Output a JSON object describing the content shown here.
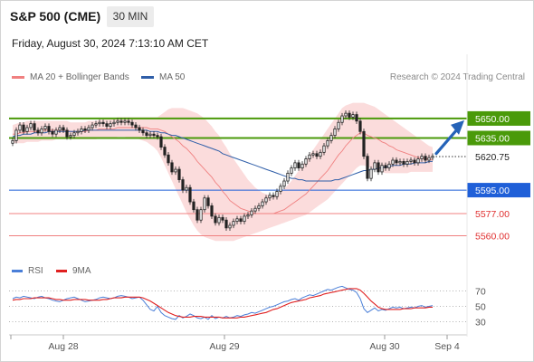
{
  "header": {
    "title": "S&P 500 (CME)",
    "timeframe": "30 MIN",
    "timestamp": "Friday, August 30, 2024 7:13:10 AM CET",
    "credit": "Research © 2024 Trading Central"
  },
  "legend": {
    "ma20": {
      "label": "MA 20 + Bollinger Bands",
      "color": "#f08080"
    },
    "ma50": {
      "label": "MA 50",
      "color": "#2f5ea8"
    },
    "rsi": {
      "label": "RSI",
      "color": "#4a7fd8"
    },
    "rsi_ma": {
      "label": "9MA",
      "color": "#e02020"
    }
  },
  "colors": {
    "resistance": "#4a9a0a",
    "pivot": "#1f5fd8",
    "support": "#f08080",
    "bullish_arrow": "#2563b8",
    "candle": "#222222",
    "band_fill": "#fbdcdc"
  },
  "chart_data": [
    {
      "type": "candlestick",
      "instrument": "S&P 500 (CME)",
      "interval": "30 MIN",
      "x_ticks": [
        "Aug 28",
        "Aug 29",
        "Aug 30",
        "Sep 4"
      ],
      "ylim": [
        5552,
        5668
      ],
      "current_price": 5620.75,
      "levels": [
        {
          "value": 5650.0,
          "label": "5650.00",
          "kind": "resistance"
        },
        {
          "value": 5635.0,
          "label": "5635.00",
          "kind": "resistance"
        },
        {
          "value": 5620.75,
          "label": "5620.75",
          "kind": "last"
        },
        {
          "value": 5595.0,
          "label": "5595.00",
          "kind": "pivot"
        },
        {
          "value": 5577.0,
          "label": "5577.00",
          "kind": "support"
        },
        {
          "value": 5560.0,
          "label": "5560.00",
          "kind": "support"
        }
      ],
      "closes": [
        5633,
        5641,
        5645,
        5640,
        5643,
        5646,
        5641,
        5639,
        5642,
        5644,
        5640,
        5638,
        5641,
        5643,
        5641,
        5636,
        5637,
        5639,
        5640,
        5642,
        5641,
        5643,
        5645,
        5646,
        5647,
        5646,
        5644,
        5646,
        5647,
        5648,
        5647,
        5648,
        5647,
        5645,
        5643,
        5641,
        5639,
        5637,
        5638,
        5637,
        5636,
        5628,
        5622,
        5616,
        5609,
        5611,
        5603,
        5595,
        5597,
        5586,
        5580,
        5572,
        5580,
        5589,
        5583,
        5575,
        5570,
        5574,
        5572,
        5566,
        5568,
        5571,
        5573,
        5571,
        5575,
        5576,
        5579,
        5581,
        5583,
        5586,
        5589,
        5591,
        5590,
        5594,
        5598,
        5602,
        5608,
        5612,
        5616,
        5612,
        5615,
        5619,
        5622,
        5623,
        5621,
        5624,
        5629,
        5633,
        5637,
        5642,
        5647,
        5652,
        5654,
        5651,
        5653,
        5648,
        5640,
        5621,
        5604,
        5611,
        5616,
        5609,
        5614,
        5612,
        5615,
        5618,
        5616,
        5617,
        5615,
        5617,
        5618,
        5616,
        5619,
        5621,
        5618,
        5620,
        5621
      ],
      "ma20": [
        5638,
        5638,
        5639,
        5639,
        5640,
        5640,
        5640,
        5640,
        5641,
        5641,
        5641,
        5641,
        5641,
        5641,
        5641,
        5641,
        5640,
        5640,
        5640,
        5640,
        5640,
        5641,
        5641,
        5641,
        5642,
        5642,
        5642,
        5642,
        5642,
        5643,
        5643,
        5643,
        5643,
        5643,
        5643,
        5643,
        5643,
        5643,
        5642,
        5642,
        5642,
        5641,
        5640,
        5638,
        5636,
        5634,
        5632,
        5629,
        5627,
        5624,
        5621,
        5617,
        5614,
        5611,
        5608,
        5605,
        5601,
        5598,
        5594,
        5591,
        5587,
        5585,
        5583,
        5581,
        5580,
        5579,
        5578,
        5577,
        5577,
        5577,
        5577,
        5577,
        5577,
        5578,
        5579,
        5580,
        5582,
        5584,
        5586,
        5588,
        5590,
        5592,
        5595,
        5598,
        5601,
        5604,
        5607,
        5610,
        5614,
        5618,
        5622,
        5625,
        5629,
        5632,
        5635,
        5637,
        5639,
        5639,
        5637,
        5636,
        5635,
        5634,
        5632,
        5631,
        5629,
        5628,
        5626,
        5625,
        5624,
        5623,
        5622,
        5621,
        5620,
        5620,
        5619,
        5619,
        5618
      ],
      "bb_upper": [
        5645,
        5646,
        5647,
        5647,
        5648,
        5648,
        5648,
        5648,
        5648,
        5648,
        5648,
        5648,
        5648,
        5648,
        5648,
        5648,
        5647,
        5647,
        5647,
        5647,
        5647,
        5648,
        5648,
        5648,
        5649,
        5649,
        5650,
        5650,
        5650,
        5651,
        5651,
        5651,
        5651,
        5651,
        5651,
        5651,
        5651,
        5651,
        5651,
        5651,
        5651,
        5653,
        5655,
        5657,
        5658,
        5658,
        5658,
        5658,
        5657,
        5656,
        5655,
        5654,
        5652,
        5650,
        5647,
        5644,
        5640,
        5637,
        5632,
        5628,
        5623,
        5619,
        5615,
        5611,
        5607,
        5603,
        5600,
        5597,
        5595,
        5593,
        5592,
        5591,
        5591,
        5592,
        5594,
        5596,
        5599,
        5602,
        5606,
        5610,
        5614,
        5618,
        5622,
        5626,
        5630,
        5634,
        5638,
        5642,
        5646,
        5650,
        5654,
        5658,
        5660,
        5661,
        5662,
        5662,
        5662,
        5662,
        5661,
        5660,
        5659,
        5657,
        5655,
        5653,
        5651,
        5649,
        5647,
        5645,
        5643,
        5641,
        5639,
        5637,
        5635,
        5633,
        5631,
        5629,
        5628
      ],
      "bb_lower": [
        5631,
        5631,
        5631,
        5631,
        5632,
        5632,
        5632,
        5632,
        5633,
        5633,
        5633,
        5633,
        5634,
        5634,
        5634,
        5634,
        5634,
        5634,
        5634,
        5634,
        5634,
        5634,
        5634,
        5634,
        5635,
        5635,
        5635,
        5635,
        5635,
        5636,
        5636,
        5636,
        5635,
        5635,
        5635,
        5634,
        5633,
        5632,
        5630,
        5628,
        5625,
        5620,
        5614,
        5608,
        5602,
        5596,
        5590,
        5584,
        5578,
        5573,
        5568,
        5564,
        5561,
        5559,
        5558,
        5557,
        5556,
        5556,
        5556,
        5556,
        5556,
        5556,
        5557,
        5558,
        5559,
        5560,
        5561,
        5562,
        5563,
        5564,
        5565,
        5566,
        5567,
        5568,
        5569,
        5570,
        5571,
        5572,
        5573,
        5574,
        5575,
        5576,
        5578,
        5580,
        5582,
        5584,
        5586,
        5588,
        5591,
        5594,
        5597,
        5600,
        5603,
        5606,
        5609,
        5612,
        5614,
        5614,
        5613,
        5612,
        5611,
        5610,
        5609,
        5608,
        5608,
        5608,
        5608,
        5608,
        5608,
        5608,
        5609,
        5609,
        5609,
        5609,
        5609,
        5609,
        5609
      ],
      "ma50": [
        5636,
        5637,
        5637,
        5638,
        5638,
        5638,
        5639,
        5639,
        5639,
        5639,
        5640,
        5640,
        5640,
        5640,
        5640,
        5640,
        5640,
        5640,
        5640,
        5640,
        5641,
        5641,
        5641,
        5641,
        5641,
        5641,
        5641,
        5641,
        5641,
        5641,
        5641,
        5641,
        5641,
        5641,
        5641,
        5641,
        5641,
        5641,
        5640,
        5640,
        5640,
        5639,
        5639,
        5638,
        5637,
        5637,
        5636,
        5635,
        5634,
        5633,
        5632,
        5631,
        5630,
        5629,
        5628,
        5627,
        5626,
        5625,
        5623,
        5622,
        5621,
        5620,
        5619,
        5618,
        5617,
        5616,
        5615,
        5614,
        5613,
        5612,
        5611,
        5610,
        5609,
        5608,
        5607,
        5606,
        5605,
        5604,
        5604,
        5603,
        5603,
        5602,
        5602,
        5602,
        5602,
        5602,
        5602,
        5602,
        5602,
        5603,
        5603,
        5604,
        5605,
        5606,
        5607,
        5608,
        5609,
        5610,
        5610,
        5611,
        5611,
        5612,
        5612,
        5613,
        5613,
        5614,
        5614,
        5614,
        5615,
        5615,
        5615,
        5616,
        5616,
        5616,
        5616,
        5617,
        5617
      ]
    },
    {
      "type": "line",
      "name": "RSI",
      "ylim": [
        20,
        80
      ],
      "y_ticks": [
        "70",
        "50",
        "30"
      ],
      "rsi": [
        60,
        62,
        61,
        63,
        62,
        61,
        60,
        62,
        63,
        61,
        60,
        58,
        57,
        56,
        58,
        60,
        61,
        62,
        60,
        58,
        56,
        57,
        58,
        59,
        61,
        62,
        61,
        60,
        61,
        63,
        64,
        63,
        62,
        60,
        61,
        62,
        58,
        52,
        46,
        44,
        50,
        42,
        38,
        36,
        34,
        33,
        38,
        35,
        37,
        40,
        38,
        35,
        34,
        36,
        33,
        38,
        34,
        36,
        35,
        37,
        35,
        36,
        38,
        37,
        39,
        40,
        42,
        41,
        43,
        45,
        47,
        49,
        50,
        52,
        54,
        56,
        57,
        59,
        60,
        58,
        61,
        63,
        65,
        64,
        66,
        68,
        70,
        72,
        71,
        73,
        75,
        76,
        74,
        72,
        71,
        68,
        60,
        47,
        42,
        45,
        48,
        44,
        46,
        45,
        47,
        49,
        48,
        49,
        47,
        48,
        49,
        48,
        50,
        51,
        49,
        50,
        51
      ],
      "rsi_ma": [
        58,
        59,
        59,
        60,
        60,
        60,
        61,
        61,
        61,
        61,
        61,
        60,
        59,
        59,
        58,
        58,
        58,
        59,
        59,
        59,
        59,
        58,
        58,
        58,
        58,
        59,
        59,
        60,
        61,
        61,
        61,
        62,
        62,
        62,
        62,
        62,
        61,
        59,
        57,
        54,
        51,
        48,
        45,
        42,
        40,
        38,
        37,
        36,
        36,
        36,
        37,
        37,
        37,
        36,
        36,
        36,
        36,
        36,
        35,
        35,
        35,
        35,
        35,
        36,
        36,
        37,
        38,
        39,
        40,
        41,
        42,
        44,
        46,
        47,
        49,
        51,
        53,
        55,
        56,
        57,
        58,
        59,
        61,
        62,
        63,
        64,
        66,
        67,
        68,
        69,
        70,
        71,
        72,
        73,
        73,
        73,
        71,
        67,
        62,
        57,
        53,
        49,
        47,
        46,
        46,
        46,
        46,
        46,
        47,
        47,
        47,
        48,
        48,
        48,
        48,
        49,
        49
      ]
    }
  ]
}
